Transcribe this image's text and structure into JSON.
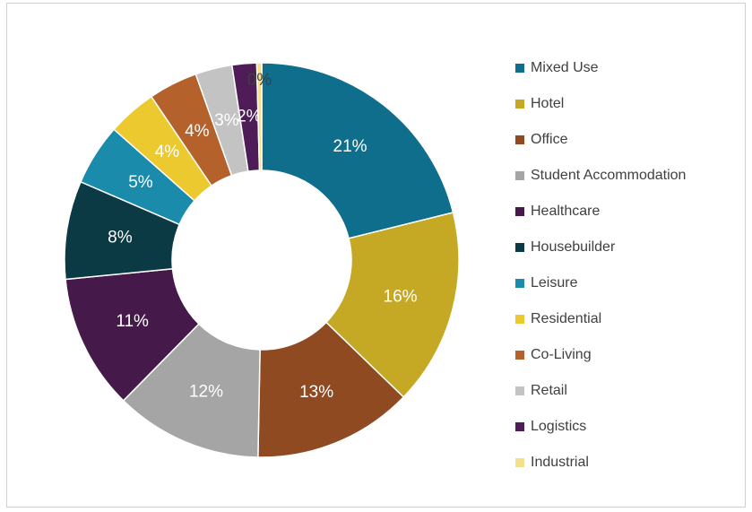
{
  "chart_data": {
    "type": "donut",
    "categories": [
      "Mixed Use",
      "Hotel",
      "Office",
      "Student Accommodation",
      "Healthcare",
      "Housebuilder",
      "Leisure",
      "Residential",
      "Co-Living",
      "Retail",
      "Logistics",
      "Industrial"
    ],
    "values": [
      21,
      16,
      13,
      12,
      11,
      8,
      5,
      4,
      4,
      3,
      2,
      0.4
    ],
    "value_labels": [
      "21%",
      "16%",
      "13%",
      "12%",
      "11%",
      "8%",
      "5%",
      "4%",
      "4%",
      "3%",
      "2%",
      "0%"
    ],
    "colors": [
      "#0e6e8c",
      "#c5a823",
      "#8f4a22",
      "#a5a5a5",
      "#451a4a",
      "#0b3a44",
      "#1b8bab",
      "#ecc92f",
      "#b5612b",
      "#c3c3c3",
      "#4e1d58",
      "#f3e08a"
    ],
    "legend": "right"
  }
}
